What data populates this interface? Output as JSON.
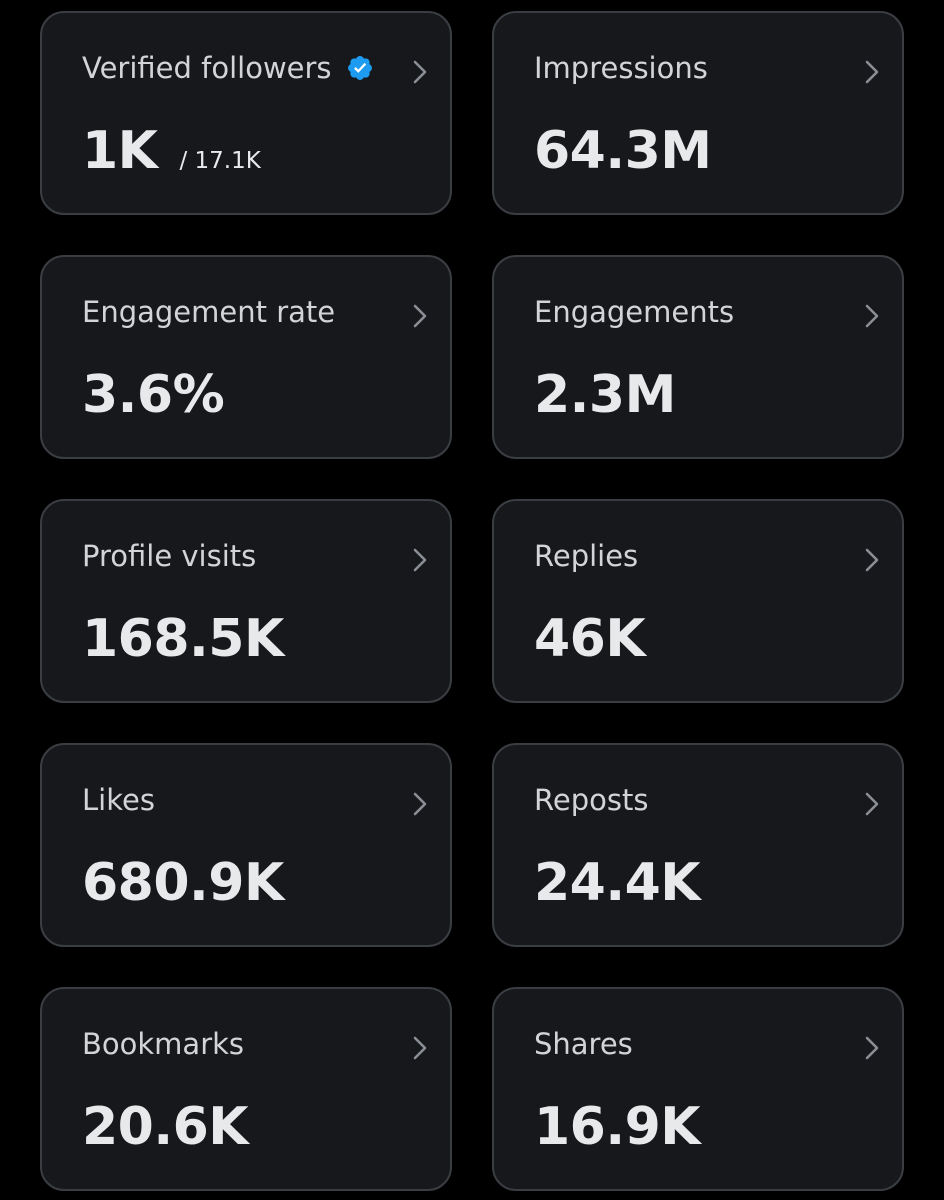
{
  "colors": {
    "background": "#000000",
    "card_background": "#16181c",
    "card_border": "#3a3d42",
    "label_text": "#d2d4d7",
    "value_text": "#e7e9ea",
    "verified_badge": "#1d9bf0",
    "chevron": "#8b8f95"
  },
  "cards": [
    {
      "label": "Verified followers",
      "value": "1K",
      "subvalue": "/ 17.1K",
      "icon": "verified-badge-icon",
      "chevron_icon": "chevron-right-icon"
    },
    {
      "label": "Impressions",
      "value": "64.3M",
      "chevron_icon": "chevron-right-icon"
    },
    {
      "label": "Engagement rate",
      "value": "3.6%",
      "chevron_icon": "chevron-right-icon"
    },
    {
      "label": "Engagements",
      "value": "2.3M",
      "chevron_icon": "chevron-right-icon"
    },
    {
      "label": "Profile visits",
      "value": "168.5K",
      "chevron_icon": "chevron-right-icon"
    },
    {
      "label": "Replies",
      "value": "46K",
      "chevron_icon": "chevron-right-icon"
    },
    {
      "label": "Likes",
      "value": "680.9K",
      "chevron_icon": "chevron-right-icon"
    },
    {
      "label": "Reposts",
      "value": "24.4K",
      "chevron_icon": "chevron-right-icon"
    },
    {
      "label": "Bookmarks",
      "value": "20.6K",
      "chevron_icon": "chevron-right-icon"
    },
    {
      "label": "Shares",
      "value": "16.9K",
      "chevron_icon": "chevron-right-icon"
    }
  ]
}
